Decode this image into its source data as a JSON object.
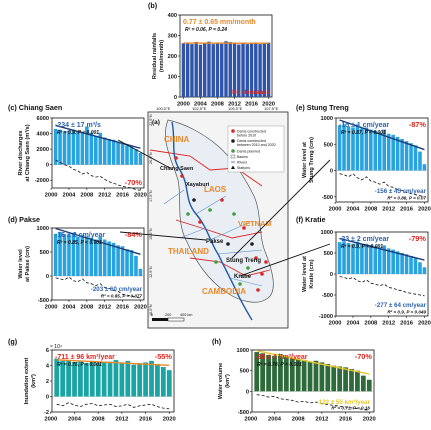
{
  "colors": {
    "bar_blue": "#2f54a8",
    "bar_sky": "#29a3df",
    "bar_teal": "#1aa4a4",
    "bar_green": "#2f6b3a",
    "trend_orange": "#e8892b",
    "trend_navy": "#1c3c78",
    "trend_yellow": "#e8c62a",
    "stat_red": "#e3251e",
    "stat_blue": "#2b63b0",
    "map_land": "#f4f4f4",
    "map_border": "#e02424",
    "map_river": "#1f5aa8"
  },
  "chart_data": [
    {
      "id": "b",
      "panel_label": "(b)",
      "type": "bar",
      "ylabel_lines": [
        "Residual rainfalls",
        "(mm/month)"
      ],
      "x": [
        2000,
        2001,
        2002,
        2003,
        2004,
        2005,
        2006,
        2007,
        2008,
        2009,
        2010,
        2011,
        2012,
        2013,
        2014,
        2015,
        2016,
        2017,
        2018,
        2019,
        2020
      ],
      "values": [
        262,
        265,
        258,
        268,
        255,
        262,
        270,
        258,
        266,
        260,
        272,
        268,
        262,
        256,
        264,
        258,
        262,
        266,
        258,
        262,
        265
      ],
      "xticks": [
        2000,
        2004,
        2008,
        2012,
        2016,
        2020
      ],
      "yticks": [
        0,
        100,
        200,
        300,
        400
      ],
      "ylim": [
        0,
        400
      ],
      "trend_text": "0.77 ± 0.65 mm/month",
      "stats_text": "R² = 0.06, P = 0.24",
      "corner_text": "No decrease"
    },
    {
      "id": "c",
      "panel_label": "(c) Chiang Saen",
      "type": "bar",
      "ylabel_lines": [
        "River discharges",
        "at Chiang Saen (m³/s)"
      ],
      "x": [
        2001,
        2002,
        2003,
        2004,
        2005,
        2006,
        2007,
        2008,
        2009,
        2010,
        2011,
        2012,
        2013,
        2014,
        2015,
        2016,
        2017,
        2018,
        2019,
        2020
      ],
      "values": [
        4600,
        4500,
        4300,
        4400,
        4500,
        4300,
        4200,
        4900,
        4100,
        3700,
        4100,
        3500,
        3300,
        3200,
        2900,
        2700,
        2500,
        2300,
        2000,
        1500
      ],
      "baseline": [
        600,
        300,
        0,
        -200,
        -600,
        -800,
        -1200,
        -1000,
        -1400,
        -1600,
        -1500,
        -1900,
        -2200,
        -2400,
        -2600,
        -2800,
        -2900,
        -3000,
        -3200,
        -3300
      ],
      "xticks": [
        2000,
        2004,
        2008,
        2012,
        2016,
        2020
      ],
      "yticks": [
        -2000,
        0,
        2000,
        4000,
        6000
      ],
      "ylim": [
        -3000,
        6000
      ],
      "trend_text": "-234 ± 17 m³/s",
      "stats_text": "R² = 0.9, P < 0.001",
      "corner_text": "-70%"
    },
    {
      "id": "d",
      "panel_label": "(d) Pakse",
      "type": "bar",
      "ylabel_lines": [
        "Water level",
        "at Pakse (cm)"
      ],
      "x": [
        2001,
        2002,
        2003,
        2004,
        2005,
        2006,
        2007,
        2008,
        2009,
        2010,
        2011,
        2012,
        2013,
        2014,
        2015,
        2016,
        2017,
        2018,
        2019,
        2020
      ],
      "values": [
        880,
        920,
        870,
        860,
        900,
        820,
        860,
        820,
        800,
        760,
        820,
        760,
        720,
        690,
        640,
        620,
        560,
        540,
        420,
        150
      ],
      "baseline": [
        -40,
        -60,
        -80,
        -20,
        -100,
        -120,
        -60,
        -140,
        -160,
        -200,
        -160,
        -240,
        -260,
        -300,
        -320,
        -380,
        -400,
        -420,
        -440,
        -460
      ],
      "xticks": [
        2000,
        2004,
        2008,
        2012,
        2016,
        2020
      ],
      "yticks": [
        -500,
        0,
        500,
        1000
      ],
      "ylim": [
        -500,
        1000
      ],
      "trend_text": "-16 ± 2 cm/year",
      "stats_text": "R² = 0.85, P < 0.001",
      "corner_text": "-84%",
      "trend2_text": "-203 ± 60 cm/year",
      "stats2_text": "R² = 0.85, P = 0.077"
    },
    {
      "id": "e",
      "panel_label": "(e) Stung Treng",
      "type": "bar",
      "ylabel_lines": [
        "Water level at",
        "Stung Treng (cm)"
      ],
      "x": [
        2001,
        2002,
        2003,
        2004,
        2005,
        2006,
        2007,
        2008,
        2009,
        2010,
        2011,
        2012,
        2013,
        2014,
        2015,
        2016,
        2017,
        2018,
        2019,
        2020
      ],
      "values": [
        860,
        880,
        840,
        820,
        880,
        800,
        820,
        780,
        760,
        720,
        780,
        700,
        680,
        640,
        600,
        560,
        520,
        480,
        360,
        120
      ],
      "baseline": [
        -60,
        -80,
        -120,
        -60,
        -140,
        -180,
        -120,
        -200,
        -220,
        -260,
        -220,
        -300,
        -320,
        -360,
        -380,
        -420,
        -440,
        -460,
        -480,
        -500
      ],
      "xticks": [
        2000,
        2004,
        2008,
        2012,
        2016,
        2020
      ],
      "yticks": [
        -500,
        0,
        500,
        1000
      ],
      "ylim": [
        -600,
        1000
      ],
      "trend_text": "-15 ± 1 cm/year",
      "stats_text": "R² = 0.87, P < 0.001",
      "corner_text": "-87%",
      "trend2_text": "-156 ± 45 cm/year",
      "stats2_text": "R² = 0.86, P = 0.07"
    },
    {
      "id": "f",
      "panel_label": "(f) Kratie",
      "type": "bar",
      "ylabel_lines": [
        "Water level at",
        "Kratie (cm)"
      ],
      "x": [
        2001,
        2002,
        2003,
        2004,
        2005,
        2006,
        2007,
        2008,
        2009,
        2010,
        2011,
        2012,
        2013,
        2014,
        2015,
        2016,
        2017,
        2018,
        2019,
        2020
      ],
      "values": [
        760,
        780,
        740,
        720,
        770,
        700,
        720,
        690,
        660,
        620,
        680,
        610,
        580,
        540,
        500,
        470,
        430,
        380,
        280,
        160
      ],
      "baseline": [
        -60,
        -80,
        -120,
        -80,
        -160,
        -200,
        -140,
        -220,
        -240,
        -280,
        -240,
        -320,
        -340,
        -380,
        -400,
        -440,
        -460,
        -480,
        -500,
        -520
      ],
      "xticks": [
        2000,
        2004,
        2008,
        2012,
        2016,
        2020
      ],
      "yticks": [
        -1000,
        -500,
        0,
        500,
        1000
      ],
      "ylim": [
        -1000,
        1000
      ],
      "trend_text": "-23 ± 2 cm/year",
      "stats_text": "R² = 0.9, P < 0.001",
      "corner_text": "-79%",
      "trend2_text": "-277 ± 64 cm/year",
      "stats2_text": "R² = 0.9, P = 0.049"
    },
    {
      "id": "g",
      "panel_label": "(g)",
      "type": "bar",
      "ylabel_lines": [
        "Inundation extent",
        "(km²)"
      ],
      "exponent_label": "× 10⁴",
      "x": [
        2001,
        2002,
        2003,
        2004,
        2005,
        2006,
        2007,
        2008,
        2009,
        2010,
        2011,
        2012,
        2013,
        2014,
        2015,
        2016,
        2017,
        2018,
        2019,
        2020
      ],
      "values": [
        4.9,
        4.6,
        4.7,
        4.4,
        4.5,
        4.3,
        4.6,
        4.3,
        4.4,
        4.5,
        4.7,
        4.3,
        4.6,
        4.1,
        4.3,
        4.4,
        4.6,
        4.2,
        3.8,
        3.4
      ],
      "baseline": [
        -1.0,
        -1.2,
        -0.8,
        -1.1,
        -1.3,
        -1.0,
        -0.9,
        -1.2,
        -1.1,
        -1.0,
        -1.3,
        -1.2,
        -1.0,
        -1.4,
        -1.2,
        -1.1,
        -1.0,
        -1.3,
        -1.5,
        -1.6
      ],
      "xticks": [
        2000,
        2004,
        2008,
        2012,
        2016,
        2020
      ],
      "yticks": [
        -2,
        0,
        2,
        4,
        6
      ],
      "ylim": [
        -2,
        6
      ],
      "trend_text": "-711 ± 96 km²/year",
      "stats_text": "R² = 0.75, P < 0.001",
      "corner_text": "-55%"
    },
    {
      "id": "h",
      "panel_label": "(h)",
      "type": "bar",
      "ylabel_lines": [
        "Water volume",
        "(km³)"
      ],
      "x": [
        2001,
        2002,
        2003,
        2004,
        2005,
        2006,
        2007,
        2008,
        2009,
        2010,
        2011,
        2012,
        2013,
        2014,
        2015,
        2016,
        2017,
        2018,
        2019,
        2020
      ],
      "values": [
        950,
        920,
        880,
        860,
        900,
        840,
        800,
        780,
        760,
        720,
        740,
        700,
        660,
        620,
        600,
        580,
        540,
        500,
        380,
        280
      ],
      "baseline": [
        -80,
        -100,
        -140,
        -120,
        -180,
        -200,
        -220,
        -260,
        -240,
        -280,
        -260,
        -300,
        -320,
        -340,
        -360,
        -380,
        -400,
        -420,
        -440,
        -460
      ],
      "xticks": [
        2000,
        2004,
        2008,
        2012,
        2016,
        2020
      ],
      "yticks": [
        -500,
        0,
        500,
        1000
      ],
      "ylim": [
        -500,
        1000
      ],
      "trend_text": "-30 ± 4 km³/year",
      "stats_text": "R² = 0.78, P < 0.001",
      "corner_text": "-70%",
      "trend2_text": "-122 ± 55 km³/year",
      "stats2_text": "R² = 0.71, P = 0.16"
    }
  ],
  "map": {
    "panel_label": "(a)",
    "top_lon_labels": [
      "100.0°E",
      "102.5°E",
      "105.0°E",
      "107.5°E"
    ],
    "lat_labels": [
      "22.5°N",
      "20.0°N",
      "17.5°N",
      "15.0°N",
      "12.5°N",
      "10.0°N"
    ],
    "countries": [
      "CHINA",
      "LAOS",
      "VIETNAM",
      "THAILAND",
      "CAMBODIA"
    ],
    "stations": [
      "Chiang Saen",
      "Xayaburi",
      "Pakse",
      "Stung Treng",
      "Kratie"
    ],
    "legend": [
      "Dams constructed",
      "before 2010",
      "Dams constructed",
      "between 2010 and 2020",
      "Dams planned",
      "Basins",
      "Rivers",
      "Stations"
    ],
    "scalebar": [
      "0",
      "200",
      "400 km"
    ]
  }
}
